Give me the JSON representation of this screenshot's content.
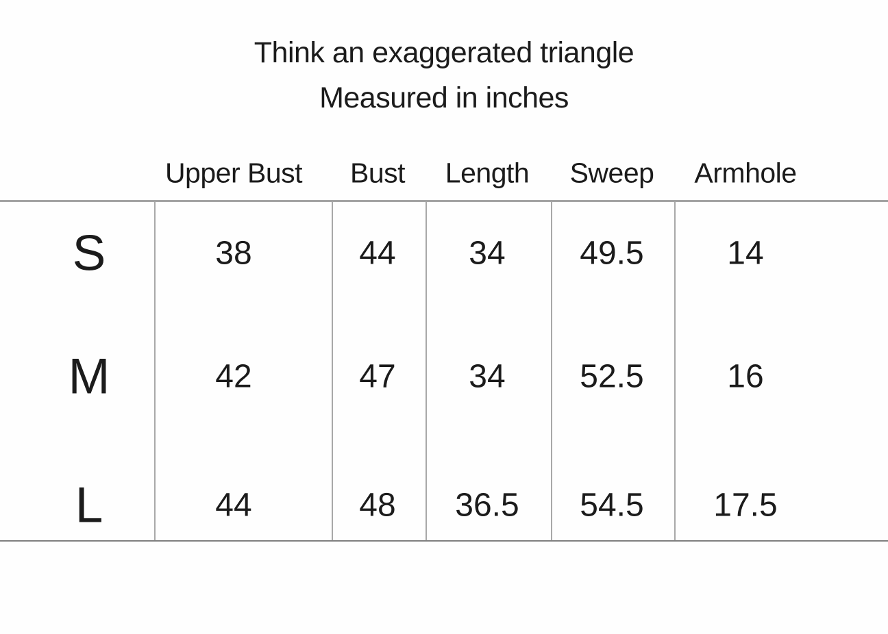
{
  "chart_data": {
    "type": "table",
    "title": "Think an exaggerated triangle",
    "subtitle": "Measured in inches",
    "unit": "inches",
    "columns": [
      "Upper Bust",
      "Bust",
      "Length",
      "Sweep",
      "Armhole"
    ],
    "row_labels": [
      "S",
      "M",
      "L"
    ],
    "rows": [
      {
        "label": "S",
        "values": [
          38,
          44,
          34,
          49.5,
          14
        ]
      },
      {
        "label": "M",
        "values": [
          42,
          47,
          34,
          52.5,
          16
        ]
      },
      {
        "label": "L",
        "values": [
          44,
          48,
          36.5,
          54.5,
          17.5
        ]
      }
    ]
  },
  "colors": {
    "text": "#1b1b1b",
    "header_rule": "#a3a3a3",
    "bottom_rule": "#7f7f7f",
    "column_line": "#a8a8a8",
    "background": "#fefefe"
  }
}
